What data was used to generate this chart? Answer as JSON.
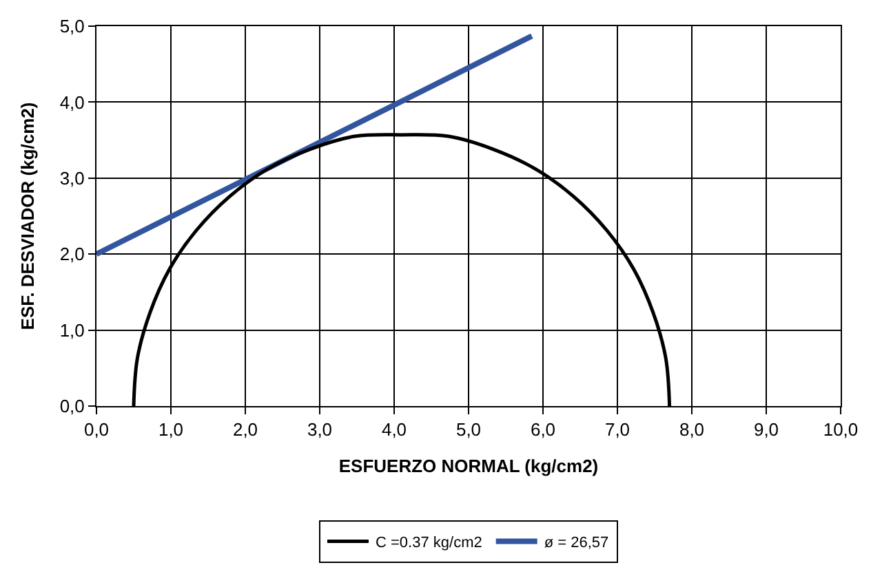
{
  "chart_data": {
    "type": "line",
    "xlabel": "ESFUERZO NORMAL (kg/cm2)",
    "ylabel": "ESF. DESVIADOR (kg/cm2)",
    "series": [
      {
        "name": "C =0.37 kg/cm2",
        "color": "#000000",
        "x": [
          0.5,
          0.55,
          0.72,
          0.98,
          1.34,
          1.79,
          2.3,
          2.87,
          3.47,
          4.1,
          4.73,
          5.33,
          5.9,
          6.41,
          6.86,
          7.22,
          7.48,
          7.65,
          7.7
        ],
        "values": [
          0,
          0.63,
          1.23,
          1.8,
          2.31,
          2.76,
          3.12,
          3.38,
          3.55,
          3.57,
          3.55,
          3.38,
          3.12,
          2.76,
          2.31,
          1.8,
          1.23,
          0.63,
          0
        ]
      },
      {
        "name": "ø = 26,57",
        "color": "#3355a0",
        "x": [
          0,
          5.85
        ],
        "values": [
          2.0,
          4.87
        ]
      }
    ],
    "xlim": [
      0,
      10
    ],
    "ylim": [
      0,
      5
    ],
    "xticks": [
      {
        "value": 0,
        "label": "0,0"
      },
      {
        "value": 1,
        "label": "1,0"
      },
      {
        "value": 2,
        "label": "2,0"
      },
      {
        "value": 3,
        "label": "3,0"
      },
      {
        "value": 4,
        "label": "4,0"
      },
      {
        "value": 5,
        "label": "5,0"
      },
      {
        "value": 6,
        "label": "6,0"
      },
      {
        "value": 7,
        "label": "7,0"
      },
      {
        "value": 8,
        "label": "8,0"
      },
      {
        "value": 9,
        "label": "9,0"
      },
      {
        "value": 10,
        "label": "10,0"
      }
    ],
    "yticks": [
      {
        "value": 0,
        "label": "0,0"
      },
      {
        "value": 1,
        "label": "1,0"
      },
      {
        "value": 2,
        "label": "2,0"
      },
      {
        "value": 3,
        "label": "3,0"
      },
      {
        "value": 4,
        "label": "4,0"
      },
      {
        "value": 5,
        "label": "5,0"
      }
    ],
    "grid": true,
    "legend": "bottom",
    "marker": "none",
    "line_style": "solid"
  }
}
